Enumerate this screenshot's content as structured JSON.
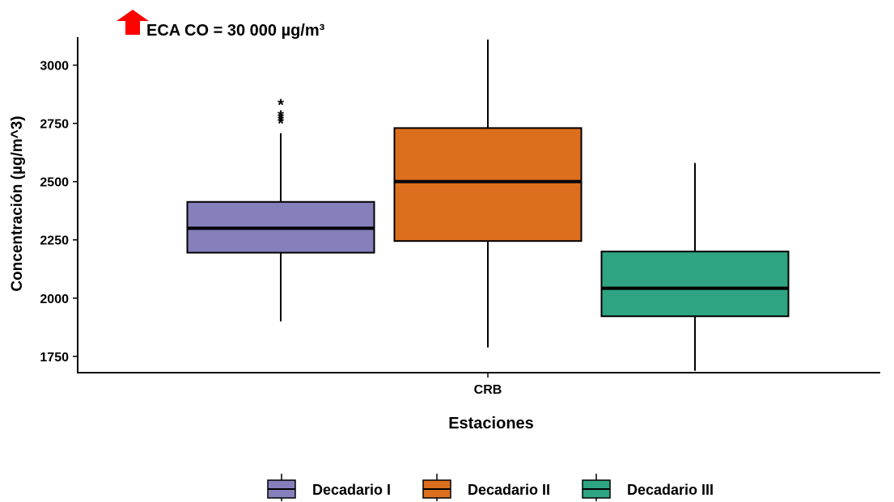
{
  "annotation": {
    "text": "ECA CO = 30 000 µg/m³",
    "color": "#ff0000"
  },
  "chart_data": {
    "type": "box",
    "xlabel": "Estaciones",
    "ylabel": "Concentración (µg/m^3)",
    "ylim": [
      1680,
      3120
    ],
    "yticks": [
      1750,
      2000,
      2250,
      2500,
      2750,
      3000
    ],
    "categories": [
      "CRB"
    ],
    "grid": false,
    "legend_position": "bottom",
    "series": [
      {
        "name": "Decadario I",
        "color": "#8580bb",
        "whisker_low": 1900,
        "q1": 2195,
        "median": 2300,
        "q3": 2413,
        "whisker_high": 2708,
        "outliers": [
          2765,
          2775,
          2785,
          2795,
          2845
        ]
      },
      {
        "name": "Decadario II",
        "color": "#dc6f1d",
        "whisker_low": 1788,
        "q1": 2245,
        "median": 2500,
        "q3": 2730,
        "whisker_high": 3110
      },
      {
        "name": "Decadario III",
        "color": "#2fa482",
        "whisker_low": 1688,
        "q1": 1922,
        "median": 2042,
        "q3": 2200,
        "whisker_high": 2580
      }
    ]
  }
}
